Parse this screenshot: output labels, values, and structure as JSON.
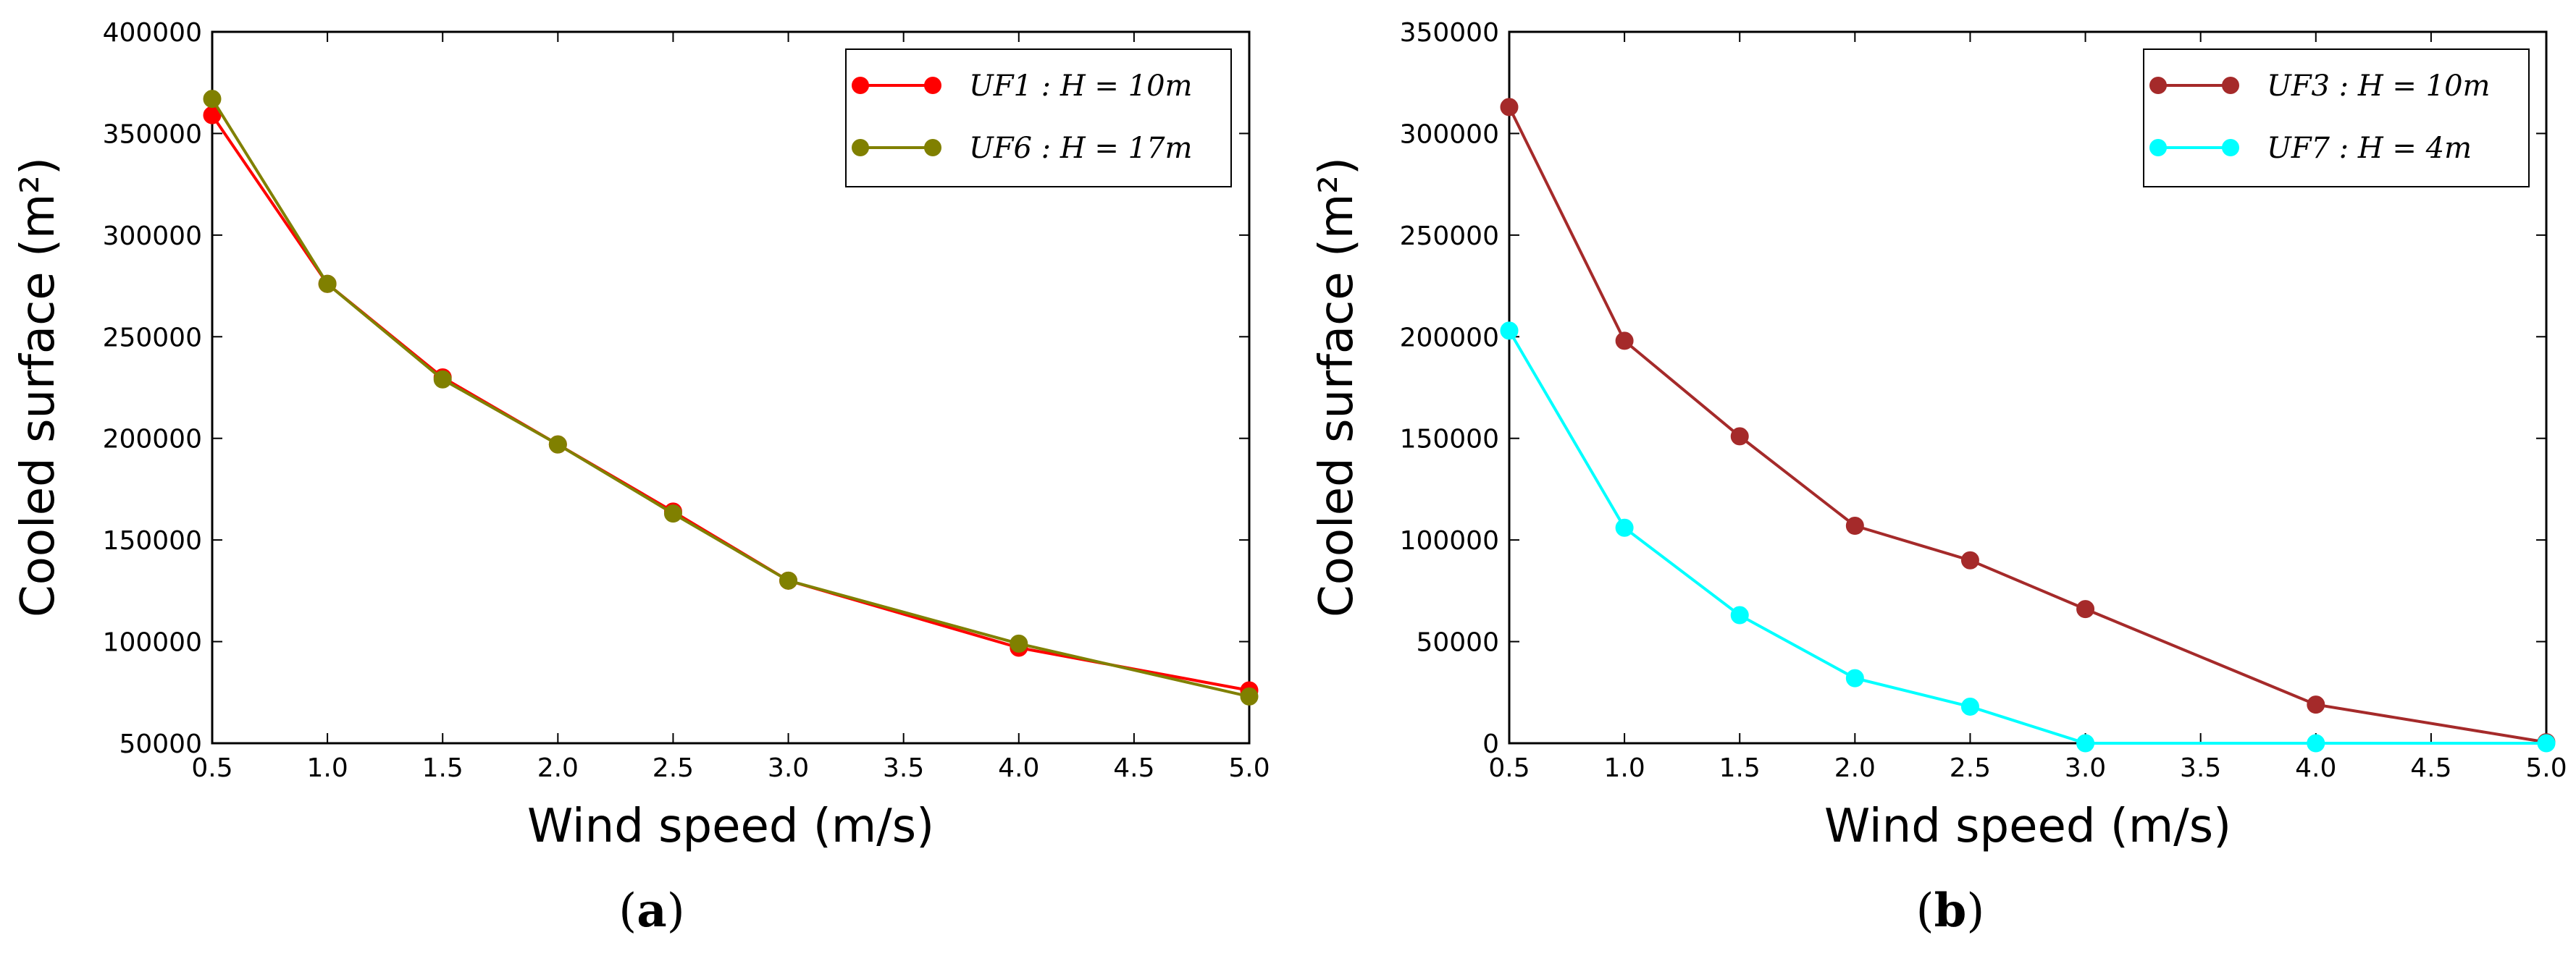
{
  "chart_data": [
    {
      "type": "line",
      "panel_label": "a",
      "title": "",
      "xlabel": "Wind speed (m/s)",
      "ylabel": "Cooled surface (m²)",
      "xlim": [
        0.5,
        5.0
      ],
      "ylim": [
        50000,
        400000
      ],
      "xticks": [
        "0.5",
        "1.0",
        "1.5",
        "2.0",
        "2.5",
        "3.0",
        "3.5",
        "4.0",
        "4.5",
        "5.0"
      ],
      "yticks": [
        "50000",
        "100000",
        "150000",
        "200000",
        "250000",
        "300000",
        "350000",
        "400000"
      ],
      "legend_position": "top-right",
      "series": [
        {
          "name": "UF1 : H = 10m",
          "color": "#ff0000",
          "x": [
            0.5,
            1.0,
            1.5,
            2.0,
            2.5,
            3.0,
            4.0,
            5.0
          ],
          "y": [
            359000,
            276000,
            230000,
            197000,
            164000,
            130000,
            97000,
            76000
          ]
        },
        {
          "name": "UF6 : H = 17m",
          "color": "#808000",
          "x": [
            0.5,
            1.0,
            1.5,
            2.0,
            2.5,
            3.0,
            4.0,
            5.0
          ],
          "y": [
            367000,
            276000,
            229000,
            197000,
            163000,
            130000,
            99000,
            73000
          ]
        }
      ]
    },
    {
      "type": "line",
      "panel_label": "b",
      "title": "",
      "xlabel": "Wind speed (m/s)",
      "ylabel": "Cooled surface (m²)",
      "xlim": [
        0.5,
        5.0
      ],
      "ylim": [
        0,
        350000
      ],
      "xticks": [
        "0.5",
        "1.0",
        "1.5",
        "2.0",
        "2.5",
        "3.0",
        "3.5",
        "4.0",
        "4.5",
        "5.0"
      ],
      "yticks": [
        "0",
        "50000",
        "100000",
        "150000",
        "200000",
        "250000",
        "300000",
        "350000"
      ],
      "legend_position": "top-right",
      "series": [
        {
          "name": "UF3 : H = 10m",
          "color": "#a52a2a",
          "x": [
            0.5,
            1.0,
            1.5,
            2.0,
            2.5,
            3.0,
            4.0,
            5.0
          ],
          "y": [
            313000,
            198000,
            151000,
            107000,
            90000,
            66000,
            19000,
            500
          ]
        },
        {
          "name": "UF7 : H = 4m",
          "color": "#00ffff",
          "x": [
            0.5,
            1.0,
            1.5,
            2.0,
            2.5,
            3.0,
            4.0,
            5.0
          ],
          "y": [
            203000,
            106000,
            63000,
            32000,
            18000,
            0,
            0,
            0
          ]
        }
      ]
    }
  ]
}
